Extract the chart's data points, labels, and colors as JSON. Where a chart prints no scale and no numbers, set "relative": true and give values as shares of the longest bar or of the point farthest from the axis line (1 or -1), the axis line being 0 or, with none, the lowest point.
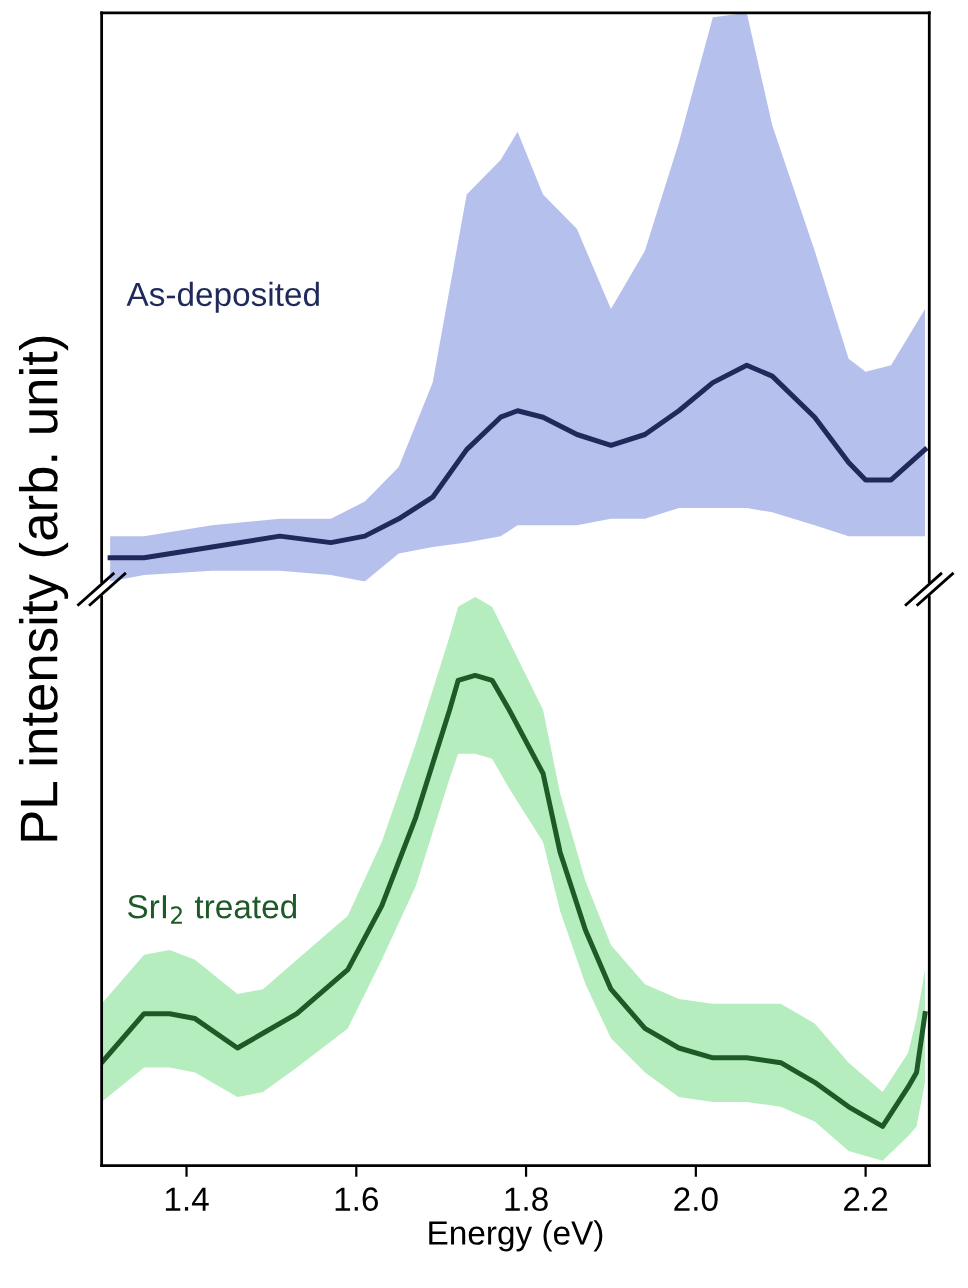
{
  "chart_data": [
    {
      "type": "line",
      "relative": true,
      "ylabel": "PL intensity (arb. unit)",
      "xlim": [
        1.3,
        2.275
      ],
      "tick_labels": false,
      "grid": false,
      "legend": false,
      "x": [
        1.31,
        1.35,
        1.43,
        1.51,
        1.57,
        1.61,
        1.65,
        1.69,
        1.73,
        1.77,
        1.79,
        1.82,
        1.86,
        1.9,
        1.94,
        1.98,
        2.02,
        2.06,
        2.09,
        2.14,
        2.18,
        2.2,
        2.23,
        2.27
      ],
      "series": [
        {
          "name": "As-deposited",
          "color": "#1f2a5a",
          "values": [
            0.11,
            0.11,
            0.16,
            0.21,
            0.18,
            0.21,
            0.29,
            0.39,
            0.61,
            0.76,
            0.79,
            0.76,
            0.68,
            0.63,
            0.68,
            0.79,
            0.92,
            1.0,
            0.95,
            0.76,
            0.55,
            0.47,
            0.47,
            0.61
          ],
          "upper": [
            0.21,
            0.21,
            0.26,
            0.29,
            0.29,
            0.37,
            0.53,
            0.92,
            1.79,
            1.95,
            2.08,
            1.79,
            1.63,
            1.26,
            1.53,
            2.03,
            2.61,
            2.63,
            2.11,
            1.53,
            1.03,
            0.97,
            1.0,
            1.26
          ],
          "lower": [
            0.0,
            0.03,
            0.05,
            0.05,
            0.03,
            0.0,
            0.13,
            0.16,
            0.18,
            0.21,
            0.26,
            0.26,
            0.26,
            0.29,
            0.29,
            0.34,
            0.34,
            0.34,
            0.32,
            0.26,
            0.21,
            0.21,
            0.21,
            0.21
          ]
        }
      ]
    },
    {
      "type": "line",
      "relative": true,
      "xlabel": "Energy (eV)",
      "xlim": [
        1.3,
        2.275
      ],
      "xticks": [
        {
          "value": 1.4,
          "label": "1.4"
        },
        {
          "value": 1.6,
          "label": "1.6"
        },
        {
          "value": 1.8,
          "label": "1.8"
        },
        {
          "value": 2.0,
          "label": "2.0"
        },
        {
          "value": 2.2,
          "label": "2.2"
        }
      ],
      "tick_labels": "x",
      "grid": false,
      "legend": false,
      "x": [
        1.3,
        1.35,
        1.38,
        1.41,
        1.46,
        1.49,
        1.53,
        1.59,
        1.63,
        1.67,
        1.71,
        1.72,
        1.74,
        1.76,
        1.78,
        1.82,
        1.84,
        1.87,
        1.9,
        1.94,
        1.98,
        2.02,
        2.06,
        2.1,
        2.14,
        2.18,
        2.22,
        2.25,
        2.26,
        2.27
      ],
      "series": [
        {
          "name": "SrI$_{2}$ treated",
          "color": "#1e5a28",
          "values": [
            0.21,
            0.31,
            0.31,
            0.3,
            0.24,
            0.27,
            0.31,
            0.4,
            0.53,
            0.71,
            0.93,
            0.99,
            1.0,
            0.99,
            0.93,
            0.8,
            0.64,
            0.48,
            0.36,
            0.28,
            0.24,
            0.22,
            0.22,
            0.21,
            0.17,
            0.12,
            0.08,
            0.16,
            0.19,
            0.31
          ],
          "upper": [
            0.33,
            0.43,
            0.44,
            0.42,
            0.35,
            0.36,
            0.42,
            0.51,
            0.66,
            0.86,
            1.08,
            1.14,
            1.16,
            1.14,
            1.07,
            0.93,
            0.76,
            0.58,
            0.45,
            0.37,
            0.34,
            0.33,
            0.33,
            0.33,
            0.29,
            0.21,
            0.15,
            0.23,
            0.3,
            0.4
          ],
          "lower": [
            0.13,
            0.2,
            0.2,
            0.19,
            0.14,
            0.15,
            0.2,
            0.28,
            0.42,
            0.57,
            0.79,
            0.84,
            0.84,
            0.83,
            0.77,
            0.66,
            0.52,
            0.37,
            0.26,
            0.19,
            0.14,
            0.13,
            0.13,
            0.12,
            0.09,
            0.03,
            0.01,
            0.06,
            0.08,
            0.17
          ]
        }
      ]
    }
  ]
}
